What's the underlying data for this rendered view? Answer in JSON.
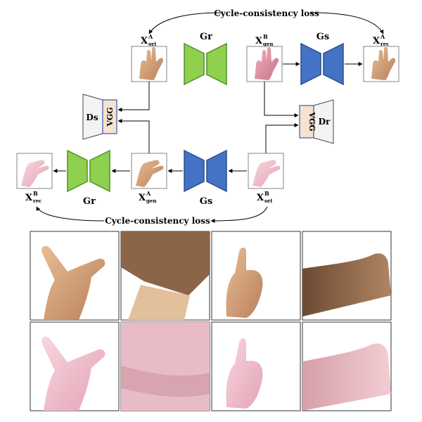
{
  "diagram": {
    "top_loss": "Cycle-consistency loss",
    "bottom_loss": "Cycle-consistency loss",
    "nodes": {
      "x_a_ori": {
        "base": "X",
        "sup": "A",
        "sub": "ori"
      },
      "x_b_gen": {
        "base": "X",
        "sup": "B",
        "sub": "gen"
      },
      "x_a_rec": {
        "base": "X",
        "sup": "A",
        "sub": "rec"
      },
      "x_b_rec": {
        "base": "X",
        "sup": "B",
        "sub": "rec"
      },
      "x_a_gen": {
        "base": "X",
        "sup": "A",
        "sub": "gen"
      },
      "x_b_ori": {
        "base": "X",
        "sup": "B",
        "sub": "ori"
      }
    },
    "generators": {
      "gr_top": "Gr",
      "gs_top": "Gs",
      "gr_bottom": "Gr",
      "gs_bottom": "Gs"
    },
    "discriminators": {
      "ds": {
        "label": "Ds",
        "vgg": "VGG"
      },
      "dr": {
        "label": "Dr",
        "vgg": "VGG"
      }
    },
    "colors": {
      "gr_fill": "#8fd14f",
      "gr_stroke": "#4f8f2a",
      "gs_fill": "#4472c4",
      "gs_stroke": "#2a4f8f",
      "vgg_fill": "#f6e3cf",
      "vgg_stroke": "#3b5bb5",
      "skin_real": "#d9a57a",
      "skin_synthetic": "#f0b8c6"
    }
  }
}
